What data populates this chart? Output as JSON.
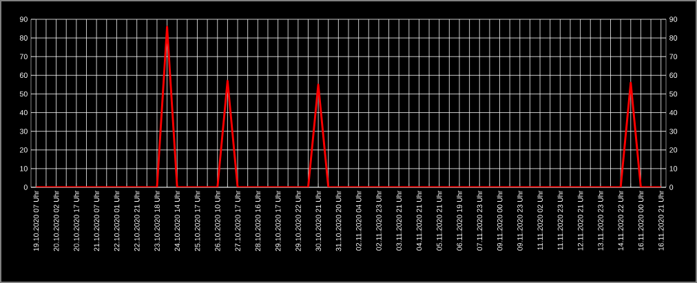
{
  "chart_data": {
    "type": "line",
    "categories": [
      "19.10.2020 07 Uhr",
      null,
      "20.10.2020 02 Uhr",
      null,
      "20.10.2020 17 Uhr",
      null,
      "21.10.2020 07 Uhr",
      null,
      "22.10.2020 01 Uhr",
      null,
      "22.10.2020 21 Uhr",
      null,
      "23.10.2020 18 Uhr",
      null,
      "24.10.2020 14 Uhr",
      null,
      "25.10.2020 17 Uhr",
      null,
      "26.10.2020 10 Uhr",
      null,
      "27.10.2020 17 Uhr",
      null,
      "28.10.2020 16 Uhr",
      null,
      "29.10.2020 17 Uhr",
      null,
      "29.10.2020 22 Uhr",
      null,
      "30.10.2020 21 Uhr",
      null,
      "31.10.2020 20 Uhr",
      null,
      "02.11.2020 04 Uhr",
      null,
      "02.11.2020 23 Uhr",
      null,
      "03.11.2020 21 Uhr",
      null,
      "04.11.2020 21 Uhr",
      null,
      "05.11.2020 21 Uhr",
      null,
      "06.11.2020 19 Uhr",
      null,
      "07.11.2020 23 Uhr",
      null,
      "09.11.2020 00 Uhr",
      null,
      "09.11.2020 23 Uhr",
      null,
      "11.11.2020 02 Uhr",
      null,
      "11.11.2020 23 Uhr",
      null,
      "12.11.2020 21 Uhr",
      null,
      "13.11.2020 23 Uhr",
      null,
      "14.11.2020 22 Uhr",
      null,
      "16.11.2020 00 Uhr",
      null,
      "16.11.2020 21 Uhr"
    ],
    "series": [
      {
        "color": "#ff0000",
        "values": [
          0,
          0,
          0,
          0,
          0,
          0,
          0,
          0,
          0,
          0,
          0,
          0,
          0,
          86,
          0,
          0,
          0,
          0,
          0,
          57,
          0,
          0,
          0,
          0,
          0,
          0,
          0,
          0,
          55,
          0,
          0,
          0,
          0,
          0,
          0,
          0,
          0,
          0,
          0,
          0,
          0,
          0,
          0,
          0,
          0,
          0,
          0,
          0,
          0,
          0,
          0,
          0,
          0,
          0,
          0,
          0,
          0,
          0,
          0,
          56,
          0,
          0,
          0
        ]
      }
    ],
    "ylim": [
      0,
      90
    ],
    "yticks": [
      0,
      10,
      20,
      30,
      40,
      50,
      60,
      70,
      80,
      90
    ],
    "y2lim": [
      0,
      90
    ],
    "y2ticks": [
      0,
      10,
      20,
      30,
      40,
      50,
      60,
      70,
      80,
      90
    ],
    "grid": true,
    "marker": "none",
    "line_style": "solid"
  }
}
